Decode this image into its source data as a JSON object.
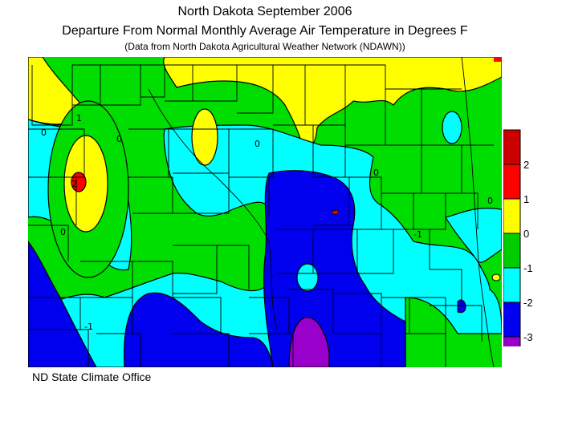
{
  "title": "North Dakota September 2006",
  "subtitle": "Departure From Normal Monthly Average Air Temperature in Degrees F",
  "source_note": "(Data from North Dakota Agricultural Weather Network (NDAWN))",
  "credit": "ND State Climate Office",
  "legend": {
    "bins": [
      {
        "label": "2",
        "color": "#ff0000"
      },
      {
        "label": "1",
        "color": "#ffff00"
      },
      {
        "label": "0",
        "color": "#00cc00"
      },
      {
        "label": "-1",
        "color": "#00ffff"
      },
      {
        "label": "-2",
        "color": "#0000ee"
      },
      {
        "label": "-3",
        "color": "#9900cc"
      }
    ],
    "top_color": "#cc0000"
  },
  "map": {
    "background": "#00dd00",
    "contour_labels": [
      "0",
      "2",
      "1",
      "0",
      "0",
      "0",
      "0",
      "-1",
      "-1",
      "0"
    ]
  }
}
